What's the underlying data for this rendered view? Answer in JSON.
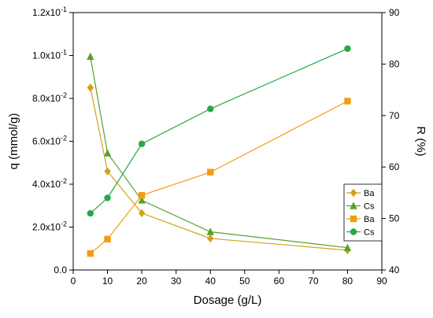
{
  "chart_data": {
    "type": "line",
    "xlabel": "Dosage (g/L)",
    "ylabel": "q (mmol/g)",
    "y2label": "R (%)",
    "xlim": [
      0,
      90
    ],
    "xticks": [
      0,
      10,
      20,
      30,
      40,
      50,
      60,
      70,
      80,
      90
    ],
    "ylim": [
      0,
      0.12
    ],
    "yticks": [
      {
        "value": 0,
        "label": "0.0"
      },
      {
        "value": 0.02,
        "label": "2.0x10",
        "exp": "-2"
      },
      {
        "value": 0.04,
        "label": "4.0x10",
        "exp": "-2"
      },
      {
        "value": 0.06,
        "label": "6.0x10",
        "exp": "-2"
      },
      {
        "value": 0.08,
        "label": "8.0x10",
        "exp": "-2"
      },
      {
        "value": 0.1,
        "label": "1.0x10",
        "exp": "-1"
      },
      {
        "value": 0.12,
        "label": "1.2x10",
        "exp": "-1"
      }
    ],
    "y2lim": [
      40,
      90
    ],
    "y2ticks": [
      40,
      50,
      60,
      70,
      80,
      90
    ],
    "legend_position": "right",
    "grid": false,
    "series": [
      {
        "name": "Ba",
        "axis": "left",
        "marker": "diamond",
        "color": "#d4a017",
        "x": [
          5,
          10,
          20,
          40,
          80
        ],
        "y": [
          0.085,
          0.046,
          0.0265,
          0.0147,
          0.0092
        ]
      },
      {
        "name": "Cs",
        "axis": "left",
        "marker": "triangle",
        "color": "#5aa02c",
        "x": [
          5,
          10,
          20,
          40,
          80
        ],
        "y": [
          0.0995,
          0.0545,
          0.0325,
          0.0178,
          0.0104
        ]
      },
      {
        "name": "Ba",
        "axis": "right",
        "marker": "square",
        "color": "#f39c12",
        "x": [
          5,
          10,
          20,
          40,
          80
        ],
        "y": [
          43.2,
          46.0,
          54.5,
          59.0,
          72.8
        ]
      },
      {
        "name": "Cs",
        "axis": "right",
        "marker": "circle",
        "color": "#27a844",
        "x": [
          5,
          10,
          20,
          40,
          80
        ],
        "y": [
          51.0,
          54.0,
          64.5,
          71.3,
          83.0
        ]
      }
    ]
  }
}
